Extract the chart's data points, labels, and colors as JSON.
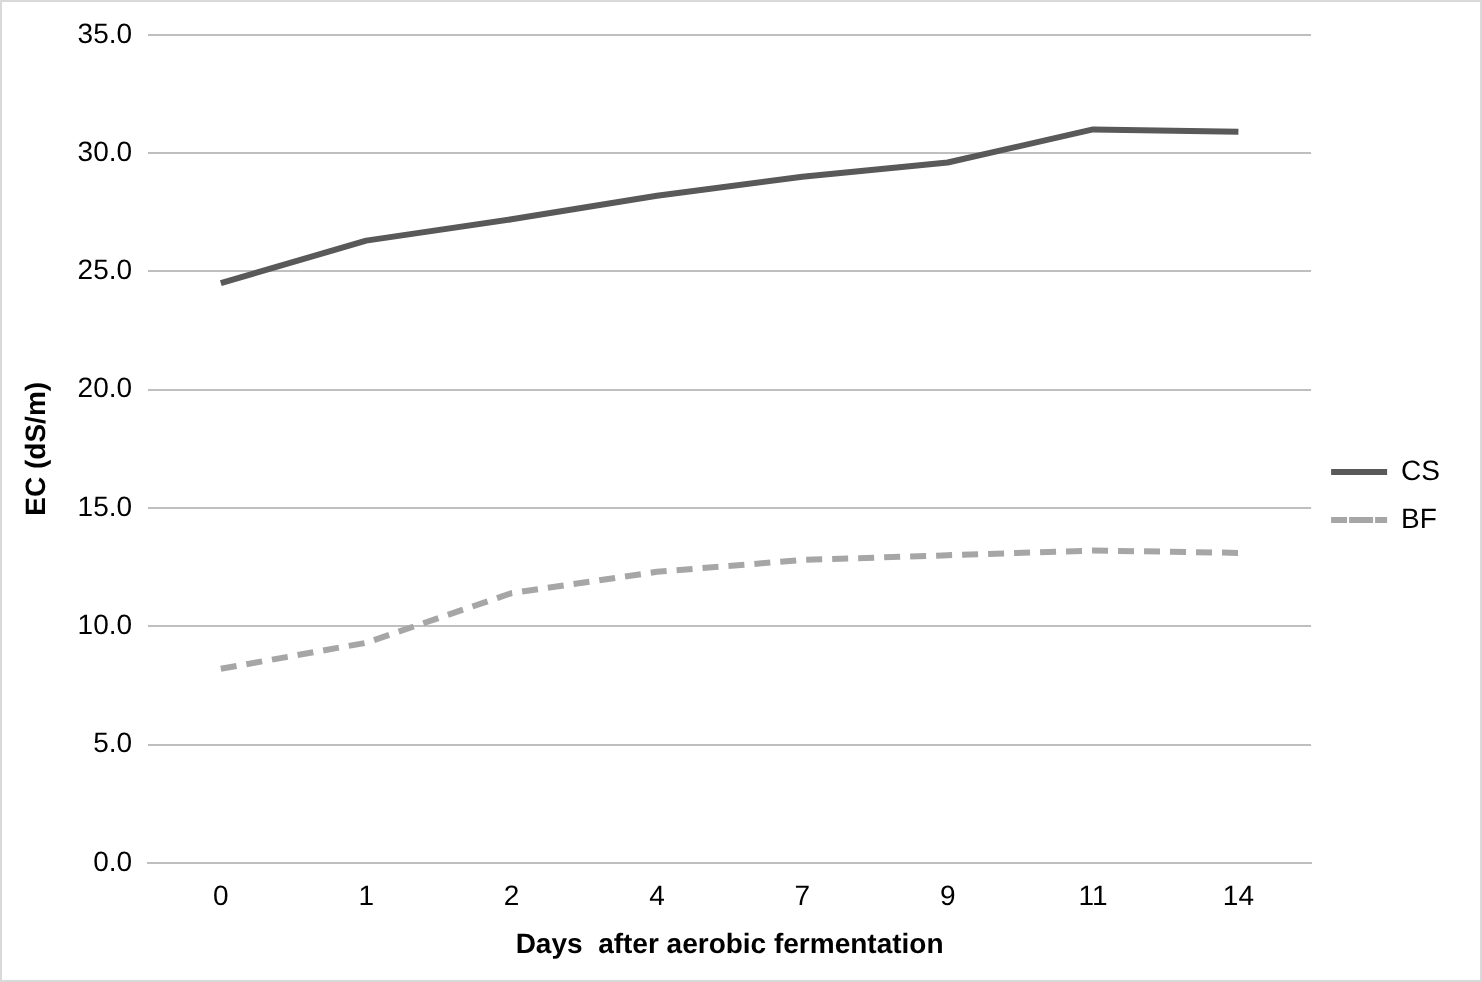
{
  "chart_data": {
    "type": "line",
    "xlabel": "Days  after aerobic fermentation",
    "ylabel": "EC (dS/m)",
    "categories": [
      "0",
      "1",
      "2",
      "4",
      "7",
      "9",
      "11",
      "14"
    ],
    "series": [
      {
        "name": "CS",
        "color": "#595959",
        "line_style": "solid",
        "values": [
          24.5,
          26.3,
          27.2,
          28.2,
          29.0,
          29.6,
          31.0,
          30.9
        ]
      },
      {
        "name": "BF",
        "color": "#a6a6a6",
        "line_style": "dashed",
        "values": [
          8.2,
          9.3,
          11.4,
          12.3,
          12.8,
          13.0,
          13.2,
          13.1
        ]
      }
    ],
    "ylim": [
      0,
      35
    ],
    "yticks": [
      {
        "value": 0,
        "label": "0.0"
      },
      {
        "value": 5,
        "label": "5.0"
      },
      {
        "value": 10,
        "label": "10.0"
      },
      {
        "value": 15,
        "label": "15.0"
      },
      {
        "value": 20,
        "label": "20.0"
      },
      {
        "value": 25,
        "label": "25.0"
      },
      {
        "value": 30,
        "label": "30.0"
      },
      {
        "value": 35,
        "label": "35.0"
      }
    ],
    "grid": "y",
    "legend": "right",
    "marker": "none"
  }
}
